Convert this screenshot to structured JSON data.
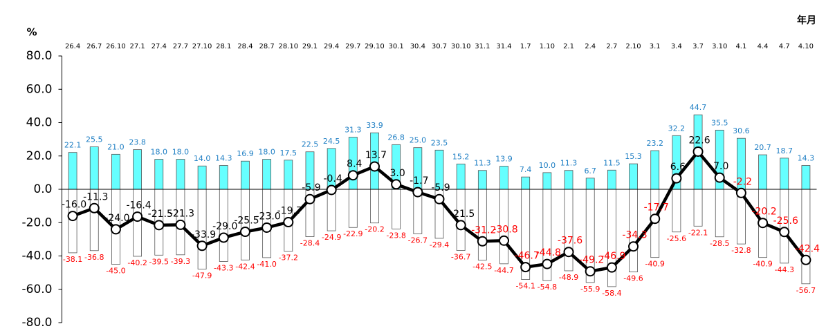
{
  "chart_data": {
    "type": "bar_line",
    "y_unit": "%",
    "x_label": "年月",
    "categories": [
      "26.4",
      "26.7",
      "26.10",
      "27.1",
      "27.4",
      "27.7",
      "27.10",
      "28.1",
      "28.4",
      "28.7",
      "28.10",
      "29.1",
      "29.4",
      "29.7",
      "29.10",
      "30.1",
      "30.4",
      "30.7",
      "30.10",
      "31.1",
      "31.4",
      "1.7",
      "1.10",
      "2.1",
      "2.4",
      "2.7",
      "2.10",
      "3.1",
      "3.4",
      "3.7",
      "3.10",
      "4.1",
      "4.4",
      "4.7",
      "4.10"
    ],
    "series": [
      {
        "kind": "bar",
        "color": "#66ffff",
        "stroke": "#555555",
        "label_color": "#1f7fc4",
        "values": [
          22.1,
          25.5,
          21.0,
          23.8,
          18.0,
          18.0,
          14.0,
          14.3,
          16.9,
          18.0,
          17.5,
          22.5,
          24.5,
          31.3,
          33.9,
          26.8,
          25.0,
          23.5,
          15.2,
          11.3,
          13.9,
          7.4,
          10.0,
          11.3,
          6.7,
          11.5,
          15.3,
          23.2,
          32.2,
          44.7,
          35.5,
          30.6,
          20.7,
          18.7,
          14.3
        ],
        "value_labels": [
          "22.1",
          "25.5",
          "21.0",
          "23.8",
          "18.0",
          "18.0",
          "14.0",
          "14.3",
          "16.9",
          "18.0",
          "17.5",
          "22.5",
          "24.5",
          "31.3",
          "33.9",
          "26.8",
          "25.0",
          "23.5",
          "15.2",
          "11.3",
          "13.9",
          "7.4",
          "10.0",
          "11.3",
          "6.7",
          "11.5",
          "15.3",
          "23.2",
          "32.2",
          "44.7",
          "35.5",
          "30.6",
          "20.7",
          "18.7",
          "14.3"
        ]
      },
      {
        "kind": "bar",
        "color": "#ffffff",
        "stroke": "#555555",
        "label_color": "#ff0000",
        "values": [
          -38.1,
          -36.8,
          -45.0,
          -40.2,
          -39.5,
          -39.3,
          -47.9,
          -43.3,
          -42.4,
          -41.0,
          -37.2,
          -28.4,
          -24.9,
          -22.9,
          -20.2,
          -23.8,
          -26.7,
          -29.4,
          -36.7,
          -42.5,
          -44.7,
          -54.1,
          -54.8,
          -48.9,
          -55.9,
          -58.4,
          -49.6,
          -40.9,
          -25.6,
          -22.1,
          -28.5,
          -32.8,
          -40.9,
          -44.3,
          -56.7
        ],
        "value_labels": [
          "-38.1",
          "-36.8",
          "-45.0",
          "-40.2",
          "-39.5",
          "-39.3",
          "-47.9",
          "-43.3",
          "-42.4",
          "-41.0",
          "-37.2",
          "-28.4",
          "-24.9",
          "-22.9",
          "-20.2",
          "-23.8",
          "-26.7",
          "-29.4",
          "-36.7",
          "-42.5",
          "-44.7",
          "-54.1",
          "-54.8",
          "-48.9",
          "-55.9",
          "-58.4",
          "-49.6",
          "-40.9",
          "-25.6",
          "-22.1",
          "-28.5",
          "-32.8",
          "-40.9",
          "-44.3",
          "-56.7"
        ]
      },
      {
        "kind": "line",
        "color": "#000000",
        "values": [
          -16.0,
          -11.3,
          -24.0,
          -16.4,
          -21.5,
          -21.3,
          -33.9,
          -29.0,
          -25.5,
          -23.0,
          -19.7,
          -5.9,
          -0.4,
          8.4,
          13.7,
          3.0,
          -1.7,
          -5.9,
          -21.5,
          -31.2,
          -30.8,
          -46.7,
          -44.8,
          -37.6,
          -49.2,
          -46.9,
          -34.3,
          -17.7,
          6.6,
          22.6,
          7.0,
          -2.2,
          -20.2,
          -25.6,
          -42.4
        ],
        "value_labels": [
          "-16.0",
          "-11.3",
          "-24.0",
          "-16.4",
          "-21.5",
          "-21.3",
          "-33.9",
          "-29.0",
          "-25.5",
          "-23.0",
          "-19.7",
          "-5.9",
          "-0.4",
          "8.4",
          "13.7",
          "3.0",
          "-1.7",
          "-5.9",
          "-21.5",
          "-31.2",
          "-30.8",
          "-46.7",
          "-44.8",
          "-37.6",
          "-49.2",
          "-46.9",
          "-34.3",
          "-17.7",
          "6.6",
          "22.6",
          "7.0",
          "-2.2",
          "-20.2",
          "-25.6",
          "-42.4"
        ],
        "value_label_colors": [
          "#000000",
          "#000000",
          "#000000",
          "#000000",
          "#000000",
          "#000000",
          "#000000",
          "#000000",
          "#000000",
          "#000000",
          "#000000",
          "#000000",
          "#000000",
          "#000000",
          "#000000",
          "#000000",
          "#000000",
          "#000000",
          "#000000",
          "#ff0000",
          "#ff0000",
          "#ff0000",
          "#ff0000",
          "#ff0000",
          "#ff0000",
          "#ff0000",
          "#ff0000",
          "#ff0000",
          "#000000",
          "#000000",
          "#000000",
          "#ff0000",
          "#ff0000",
          "#ff0000",
          "#ff0000"
        ]
      }
    ],
    "ylim": [
      -80,
      80
    ],
    "yticks": [
      {
        "value": -80,
        "label": "-80.0"
      },
      {
        "value": -60,
        "label": "-60.0"
      },
      {
        "value": -40,
        "label": "-40.0"
      },
      {
        "value": -20,
        "label": "-20.0"
      },
      {
        "value": 0,
        "label": "0.0"
      },
      {
        "value": 20,
        "label": "20.0"
      },
      {
        "value": 40,
        "label": "40.0"
      },
      {
        "value": 60,
        "label": "60.0"
      },
      {
        "value": 80,
        "label": "80.0"
      }
    ]
  }
}
